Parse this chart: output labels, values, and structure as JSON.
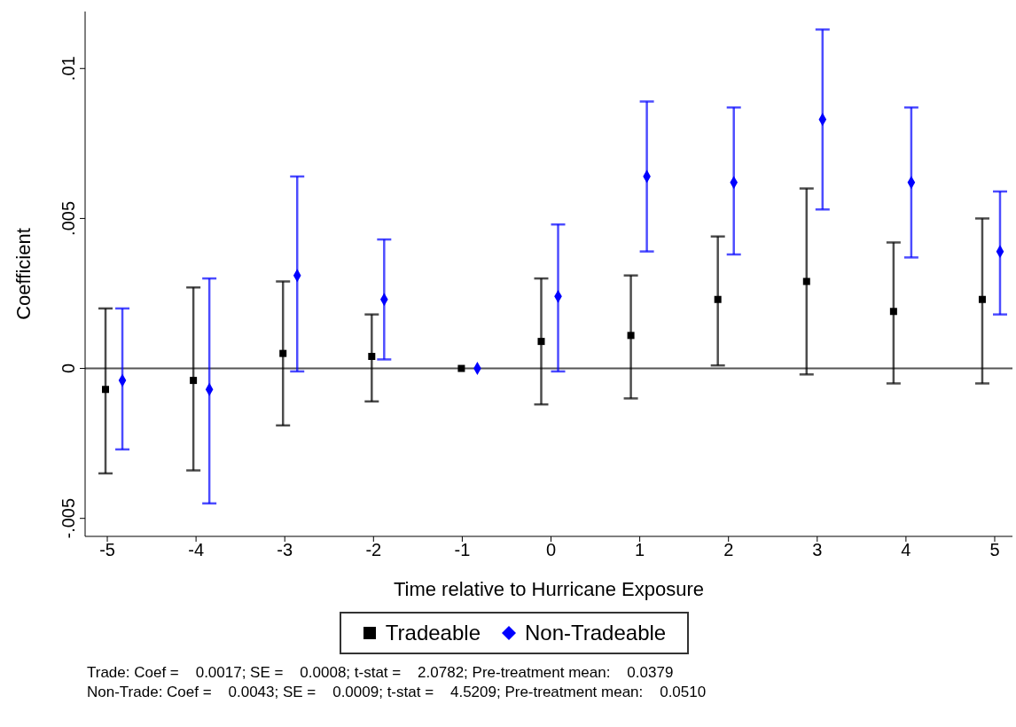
{
  "chart_data": {
    "type": "scatter",
    "xlabel": "Time relative to Hurricane Exposure",
    "ylabel": "Coefficient",
    "xlim": [
      -5.25,
      5.2
    ],
    "xticks": [
      -5,
      -4,
      -3,
      -2,
      -1,
      0,
      1,
      2,
      3,
      4,
      5
    ],
    "ylim": [
      -0.0056,
      0.0119
    ],
    "yticks": [
      {
        "value": -0.005,
        "label": "-.005"
      },
      {
        "value": 0,
        "label": "0"
      },
      {
        "value": 0.005,
        "label": ".005"
      },
      {
        "value": 0.01,
        "label": ".01"
      }
    ],
    "grid": false,
    "legend": "bottom",
    "ref_lines": [
      {
        "axis": "y",
        "value": 0,
        "color": "#555555"
      }
    ],
    "series": [
      {
        "name": "Tradeable",
        "color": "#000000",
        "marker": "square",
        "x": [
          -5.02,
          -4.03,
          -3.02,
          -2.02,
          -1.01,
          -0.11,
          0.9,
          1.88,
          2.88,
          3.86,
          4.86
        ],
        "values": [
          -0.0007,
          -0.0004,
          0.0005,
          0.0004,
          0,
          0.0009,
          0.0011,
          0.0023,
          0.0029,
          0.0019,
          0.0023
        ],
        "errors": [
          [
            -0.0035,
            0.002
          ],
          [
            -0.0034,
            0.0027
          ],
          [
            -0.0019,
            0.0029
          ],
          [
            -0.0011,
            0.0018
          ],
          null,
          [
            -0.0012,
            0.003
          ],
          [
            -0.001,
            0.0031
          ],
          [
            0.0001,
            0.0044
          ],
          [
            -0.0002,
            0.006
          ],
          [
            -0.0005,
            0.0042
          ],
          [
            -0.0005,
            0.005
          ]
        ]
      },
      {
        "name": "Non-Tradeable",
        "color": "#0000ff",
        "marker": "diamond",
        "x": [
          -4.83,
          -3.85,
          -2.86,
          -1.88,
          -0.83,
          0.08,
          1.08,
          2.06,
          3.06,
          4.06,
          5.06
        ],
        "values": [
          -0.0004,
          -0.0007,
          0.0031,
          0.0023,
          0,
          0.0024,
          0.0064,
          0.0062,
          0.0083,
          0.0062,
          0.0039
        ],
        "errors": [
          [
            -0.0027,
            0.002
          ],
          [
            -0.0045,
            0.003
          ],
          [
            -0.0001,
            0.0064
          ],
          [
            0.0003,
            0.0043
          ],
          null,
          [
            -0.0001,
            0.0048
          ],
          [
            0.0039,
            0.0089
          ],
          [
            0.0038,
            0.0087
          ],
          [
            0.0053,
            0.0113
          ],
          [
            0.0037,
            0.0087
          ],
          [
            0.0018,
            0.0059
          ]
        ]
      }
    ],
    "annotations": [
      "Trade: Coef =    0.0017; SE =    0.0008; t-stat =    2.0782; Pre-treatment mean:    0.0379",
      "Non-Trade: Coef =    0.0043; SE =    0.0009; t-stat =    4.5209; Pre-treatment mean:    0.0510"
    ]
  }
}
